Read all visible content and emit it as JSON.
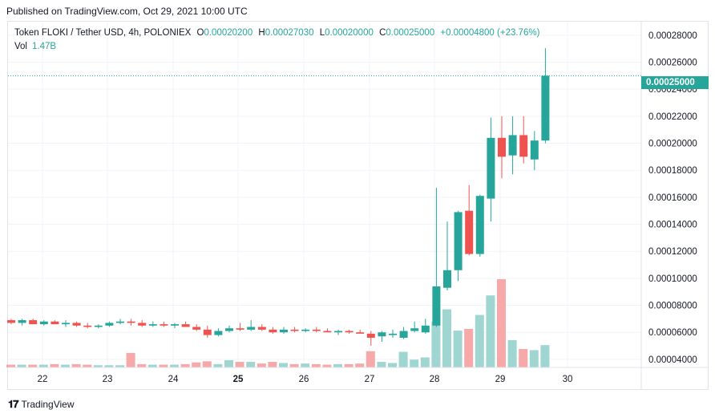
{
  "published": "Published on TradingView.com, Oct 29, 2021 10:00 UTC",
  "legend": {
    "symbol": "Token FLOKI / Tether USD, 4h, POLONIEX",
    "o_label": "O",
    "o_value": "0.00020200",
    "h_label": "H",
    "h_value": "0.00027030",
    "l_label": "L",
    "l_value": "0.00020000",
    "c_label": "C",
    "c_value": "0.00025000",
    "change": "+0.00004800 (+23.76%)"
  },
  "volume": {
    "label": "Vol",
    "value": "1.47B"
  },
  "last_price_label": "0.00025000",
  "brand": "TradingView",
  "colors": {
    "up": "#26a69a",
    "down": "#ef5350",
    "up_vol": "#9fd6d2",
    "down_vol": "#f6a9a8",
    "grid": "#f0f3fa"
  },
  "chart_data": {
    "type": "candlestick",
    "ylim": [
      3.4e-05,
      0.00029
    ],
    "y_ticks": [
      "0.00028000",
      "0.00026000",
      "0.00024000",
      "0.00022000",
      "0.00020000",
      "0.00018000",
      "0.00016000",
      "0.00014000",
      "0.00012000",
      "0.00010000",
      "0.00008000",
      "0.00006000",
      "0.00004000"
    ],
    "x_ticks": [
      "22",
      "23",
      "24",
      "25",
      "26",
      "27",
      "28",
      "29",
      "30"
    ],
    "last_price": 0.00025,
    "candles": [
      {
        "o": 6.9e-05,
        "h": 7e-05,
        "l": 6.6e-05,
        "c": 6.7e-05,
        "v": 0.05
      },
      {
        "o": 6.7e-05,
        "h": 7e-05,
        "l": 6.5e-05,
        "c": 6.9e-05,
        "v": 0.05
      },
      {
        "o": 6.9e-05,
        "h": 7e-05,
        "l": 6.6e-05,
        "c": 6.6e-05,
        "v": 0.05
      },
      {
        "o": 6.6e-05,
        "h": 6.9e-05,
        "l": 6.5e-05,
        "c": 6.8e-05,
        "v": 0.05
      },
      {
        "o": 6.8e-05,
        "h": 6.9e-05,
        "l": 6.6e-05,
        "c": 6.6e-05,
        "v": 0.06
      },
      {
        "o": 6.6e-05,
        "h": 6.9e-05,
        "l": 6.4e-05,
        "c": 6.7e-05,
        "v": 0.05
      },
      {
        "o": 6.7e-05,
        "h": 6.8e-05,
        "l": 6.4e-05,
        "c": 6.5e-05,
        "v": 0.06
      },
      {
        "o": 6.5e-05,
        "h": 6.7e-05,
        "l": 6.3e-05,
        "c": 6.4e-05,
        "v": 0.05
      },
      {
        "o": 6.4e-05,
        "h": 6.6e-05,
        "l": 6.3e-05,
        "c": 6.5e-05,
        "v": 0.04
      },
      {
        "o": 6.5e-05,
        "h": 6.8e-05,
        "l": 6.4e-05,
        "c": 6.7e-05,
        "v": 0.04
      },
      {
        "o": 6.7e-05,
        "h": 7e-05,
        "l": 6.6e-05,
        "c": 6.8e-05,
        "v": 0.04
      },
      {
        "o": 6.8e-05,
        "h": 7e-05,
        "l": 6.5e-05,
        "c": 6.7e-05,
        "v": 0.26
      },
      {
        "o": 6.7e-05,
        "h": 6.9e-05,
        "l": 6.4e-05,
        "c": 6.5e-05,
        "v": 0.06
      },
      {
        "o": 6.5e-05,
        "h": 6.8e-05,
        "l": 6.4e-05,
        "c": 6.6e-05,
        "v": 0.05
      },
      {
        "o": 6.6e-05,
        "h": 6.8e-05,
        "l": 6.4e-05,
        "c": 6.5e-05,
        "v": 0.05
      },
      {
        "o": 6.5e-05,
        "h": 6.7e-05,
        "l": 6.3e-05,
        "c": 6.6e-05,
        "v": 0.05
      },
      {
        "o": 6.6e-05,
        "h": 6.8e-05,
        "l": 6.4e-05,
        "c": 6.4e-05,
        "v": 0.06
      },
      {
        "o": 6.4e-05,
        "h": 6.6e-05,
        "l": 6.1e-05,
        "c": 6.2e-05,
        "v": 0.09
      },
      {
        "o": 6.2e-05,
        "h": 6.5e-05,
        "l": 5.6e-05,
        "c": 5.8e-05,
        "v": 0.11
      },
      {
        "o": 5.8e-05,
        "h": 6.3e-05,
        "l": 5.7e-05,
        "c": 6.1e-05,
        "v": 0.06
      },
      {
        "o": 6.1e-05,
        "h": 6.5e-05,
        "l": 6e-05,
        "c": 6.3e-05,
        "v": 0.13
      },
      {
        "o": 6.3e-05,
        "h": 6.7e-05,
        "l": 6.1e-05,
        "c": 6.2e-05,
        "v": 0.1
      },
      {
        "o": 6.2e-05,
        "h": 6.9e-05,
        "l": 6.1e-05,
        "c": 6.4e-05,
        "v": 0.1
      },
      {
        "o": 6.4e-05,
        "h": 6.6e-05,
        "l": 6.1e-05,
        "c": 6.2e-05,
        "v": 0.07
      },
      {
        "o": 6.2e-05,
        "h": 6.4e-05,
        "l": 5.9e-05,
        "c": 6e-05,
        "v": 0.1
      },
      {
        "o": 6e-05,
        "h": 6.4e-05,
        "l": 5.9e-05,
        "c": 6.2e-05,
        "v": 0.08
      },
      {
        "o": 6.2e-05,
        "h": 6.4e-05,
        "l": 6e-05,
        "c": 6.1e-05,
        "v": 0.06
      },
      {
        "o": 6.1e-05,
        "h": 6.3e-05,
        "l": 6e-05,
        "c": 6.2e-05,
        "v": 0.07
      },
      {
        "o": 6.2e-05,
        "h": 6.4e-05,
        "l": 6e-05,
        "c": 6.1e-05,
        "v": 0.06
      },
      {
        "o": 6.1e-05,
        "h": 6.3e-05,
        "l": 6e-05,
        "c": 6e-05,
        "v": 0.05
      },
      {
        "o": 6e-05,
        "h": 6.2e-05,
        "l": 5.8e-05,
        "c": 6.1e-05,
        "v": 0.06
      },
      {
        "o": 6.1e-05,
        "h": 6.2e-05,
        "l": 5.9e-05,
        "c": 6e-05,
        "v": 0.06
      },
      {
        "o": 6e-05,
        "h": 6.2e-05,
        "l": 5.9e-05,
        "c": 5.9e-05,
        "v": 0.07
      },
      {
        "o": 5.9e-05,
        "h": 6.1e-05,
        "l": 5e-05,
        "c": 5.6e-05,
        "v": 0.29
      },
      {
        "o": 5.7e-05,
        "h": 6.1e-05,
        "l": 5.3e-05,
        "c": 6e-05,
        "v": 0.1
      },
      {
        "o": 5.8e-05,
        "h": 6.2e-05,
        "l": 5.6e-05,
        "c": 5.9e-05,
        "v": 0.08
      },
      {
        "o": 5.6e-05,
        "h": 6.4e-05,
        "l": 5.5e-05,
        "c": 6.1e-05,
        "v": 0.28
      },
      {
        "o": 6.1e-05,
        "h": 6.8e-05,
        "l": 6e-05,
        "c": 6.3e-05,
        "v": 0.14
      },
      {
        "o": 6e-05,
        "h": 7e-05,
        "l": 5.9e-05,
        "c": 6.5e-05,
        "v": 0.18
      },
      {
        "o": 6.5e-05,
        "h": 0.000167,
        "l": 6.4e-05,
        "c": 9.4e-05,
        "v": 0.82
      },
      {
        "o": 9.3e-05,
        "h": 0.000142,
        "l": 9.1e-05,
        "c": 0.000106,
        "v": 1.04
      },
      {
        "o": 0.000106,
        "h": 0.00015,
        "l": 9.8e-05,
        "c": 0.000149,
        "v": 0.66
      },
      {
        "o": 0.00015,
        "h": 0.000169,
        "l": 0.000117,
        "c": 0.000118,
        "v": 0.69
      },
      {
        "o": 0.000118,
        "h": 0.000162,
        "l": 0.000116,
        "c": 0.000161,
        "v": 0.94
      },
      {
        "o": 0.000159,
        "h": 0.000219,
        "l": 0.000142,
        "c": 0.000204,
        "v": 1.29
      },
      {
        "o": 0.000204,
        "h": 0.00022,
        "l": 0.000174,
        "c": 0.00019,
        "v": 1.58
      },
      {
        "o": 0.000191,
        "h": 0.00022,
        "l": 0.000177,
        "c": 0.000206,
        "v": 0.49
      },
      {
        "o": 0.000206,
        "h": 0.00022,
        "l": 0.000185,
        "c": 0.00019,
        "v": 0.33
      },
      {
        "o": 0.000188,
        "h": 0.000209,
        "l": 0.00018,
        "c": 0.000202,
        "v": 0.31
      },
      {
        "o": 0.000202,
        "h": 0.0002703,
        "l": 0.0002,
        "c": 0.00025,
        "v": 0.4
      }
    ]
  }
}
